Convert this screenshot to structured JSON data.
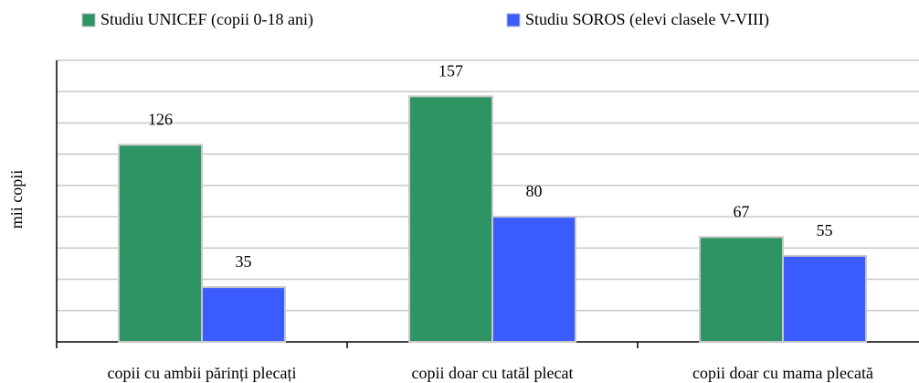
{
  "chart_data": {
    "type": "bar",
    "y_label": "mii copii",
    "categories": [
      "copii cu ambii părinți plecați",
      "copii doar cu tatăl plecat",
      "copii doar cu mama plecată"
    ],
    "series": [
      {
        "name": "Studiu UNICEF (copii 0-18 ani)",
        "color": "#2e9464",
        "values": [
          126,
          157,
          67
        ]
      },
      {
        "name": "Studiu SOROS (elevi clasele V-VIII)",
        "color": "#3a5cff",
        "values": [
          35,
          80,
          55
        ]
      }
    ],
    "ylim": [
      0,
      180
    ],
    "yticks": [
      0,
      20,
      40,
      60,
      80,
      100,
      120,
      140,
      160,
      180
    ],
    "grid": true
  }
}
